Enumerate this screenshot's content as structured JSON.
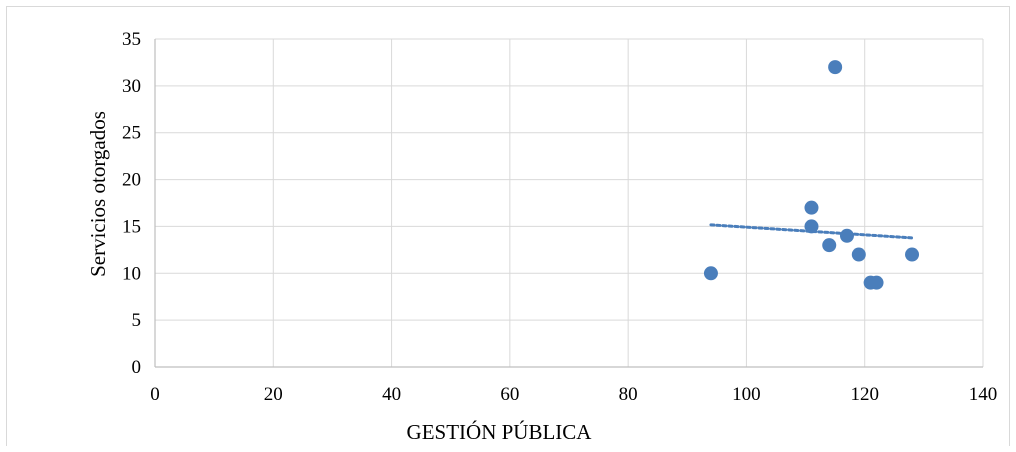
{
  "chart_data": {
    "type": "scatter",
    "title": "",
    "xlabel": "GESTIÓN PÚBLICA",
    "ylabel": "Servicios otorgados",
    "xlim": [
      0,
      140
    ],
    "ylim": [
      0,
      35
    ],
    "x_ticks": [
      0,
      20,
      40,
      60,
      80,
      100,
      120,
      140
    ],
    "y_ticks": [
      0,
      5,
      10,
      15,
      20,
      25,
      30,
      35
    ],
    "grid": true,
    "legend": "none",
    "series": [
      {
        "points": [
          {
            "x": 94,
            "y": 10
          },
          {
            "x": 111,
            "y": 17
          },
          {
            "x": 111,
            "y": 15
          },
          {
            "x": 114,
            "y": 13
          },
          {
            "x": 115,
            "y": 32
          },
          {
            "x": 117,
            "y": 14
          },
          {
            "x": 119,
            "y": 12
          },
          {
            "x": 121,
            "y": 9
          },
          {
            "x": 122,
            "y": 9
          },
          {
            "x": 128,
            "y": 12
          }
        ],
        "color": "#4a7ebb",
        "trendline": {
          "type": "linear",
          "style": "dotted",
          "color": "#4a7ebb"
        }
      }
    ]
  }
}
